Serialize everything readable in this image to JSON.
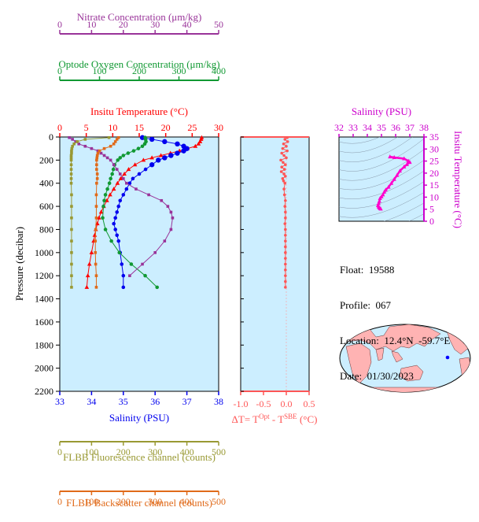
{
  "float_info": {
    "float": "Float:  19588",
    "profile": "Profile:  067",
    "location": "Location:  12.4°N  -59.7°E",
    "date": "Date:  01/30/2023"
  },
  "chart_data": [
    {
      "type": "line",
      "panel": "main-profile",
      "ylabel": "Pressure (decibar)",
      "ylim": [
        2200,
        0
      ],
      "yticks": [
        0,
        200,
        400,
        600,
        800,
        1000,
        1200,
        1400,
        1600,
        1800,
        2000,
        2200
      ],
      "axes": {
        "nitrate": {
          "label": "Nitrate Concentration (μm/kg)",
          "range": [
            0,
            50
          ],
          "ticks": [
            0,
            10,
            20,
            30,
            40,
            50
          ],
          "color": "#993399"
        },
        "oxygen": {
          "label": "Optode Oxygen Concentration (μm/kg)",
          "range": [
            0,
            400
          ],
          "ticks": [
            0,
            100,
            200,
            300,
            400
          ],
          "color": "#119933"
        },
        "temperature": {
          "label": "Insitu Temperature (°C)",
          "range": [
            0,
            30
          ],
          "ticks": [
            0,
            5,
            10,
            15,
            20,
            25,
            30
          ],
          "color": "#ff0000"
        },
        "salinity": {
          "label": "Salinity (PSU)",
          "range": [
            33,
            38
          ],
          "ticks": [
            33,
            34,
            35,
            36,
            37,
            38
          ],
          "color": "#0000ee"
        },
        "fluorescence": {
          "label": "FLBB Fluorescence channel (counts)",
          "range": [
            0,
            500
          ],
          "ticks": [
            0,
            100,
            200,
            300,
            400,
            500
          ],
          "color": "#999933"
        },
        "backscatter": {
          "label": "FLBB Backscatter channel (counts)",
          "range": [
            0,
            500
          ],
          "ticks": [
            0,
            100,
            200,
            300,
            400,
            500
          ],
          "color": "#e06a1a"
        }
      },
      "series": [
        {
          "axis": "temperature",
          "pressure": [
            5,
            20,
            40,
            60,
            80,
            100,
            120,
            140,
            160,
            180,
            200,
            240,
            280,
            320,
            360,
            400,
            450,
            500,
            550,
            600,
            650,
            700,
            750,
            800,
            850,
            900,
            1000,
            1100,
            1200,
            1300
          ],
          "values": [
            26.8,
            26.7,
            26.5,
            26.2,
            25.6,
            24.1,
            22.6,
            20.9,
            19.1,
            17.4,
            15.8,
            14.2,
            13.0,
            12.2,
            11.5,
            10.9,
            10.2,
            9.5,
            8.9,
            8.3,
            7.8,
            7.4,
            7.1,
            6.8,
            6.6,
            6.4,
            6.0,
            5.6,
            5.3,
            5.1
          ]
        },
        {
          "axis": "salinity",
          "pressure": [
            5,
            20,
            40,
            60,
            80,
            100,
            120,
            140,
            160,
            180,
            200,
            240,
            280,
            320,
            360,
            400,
            450,
            500,
            550,
            600,
            650,
            700,
            750,
            800,
            850,
            900,
            1000,
            1100,
            1200,
            1300
          ],
          "values": [
            35.6,
            35.9,
            36.3,
            36.7,
            36.9,
            37.0,
            36.9,
            36.7,
            36.5,
            36.3,
            36.1,
            35.9,
            35.7,
            35.5,
            35.3,
            35.2,
            35.1,
            35.0,
            34.9,
            34.85,
            34.8,
            34.75,
            34.7,
            34.75,
            34.8,
            34.85,
            34.9,
            34.95,
            35.0,
            35.0
          ]
        },
        {
          "axis": "oxygen",
          "pressure": [
            5,
            20,
            40,
            60,
            80,
            100,
            120,
            140,
            160,
            180,
            200,
            240,
            280,
            320,
            360,
            400,
            450,
            500,
            550,
            600,
            700,
            800,
            900,
            1000,
            1100,
            1200,
            1300
          ],
          "values": [
            215,
            216,
            217,
            214,
            208,
            198,
            186,
            172,
            160,
            152,
            146,
            138,
            135,
            132,
            128,
            125,
            120,
            115,
            112,
            110,
            108,
            115,
            130,
            150,
            180,
            215,
            245
          ]
        },
        {
          "axis": "nitrate",
          "pressure": [
            5,
            20,
            40,
            60,
            80,
            100,
            120,
            140,
            160,
            180,
            200,
            240,
            280,
            320,
            360,
            400,
            450,
            500,
            550,
            600,
            650,
            700,
            800,
            900,
            1000,
            1100,
            1200
          ],
          "values": [
            3,
            4,
            5,
            6,
            8,
            10,
            12,
            13,
            14,
            15,
            16,
            17,
            18,
            19,
            20,
            21,
            24,
            28,
            32,
            34,
            35,
            35.5,
            35,
            33,
            30,
            26,
            22
          ]
        },
        {
          "axis": "fluorescence",
          "pressure": [
            5,
            20,
            40,
            60,
            80,
            100,
            120,
            140,
            160,
            180,
            200,
            240,
            280,
            320,
            360,
            400,
            500,
            600,
            700,
            800,
            900,
            1000,
            1100,
            1200,
            1300
          ],
          "values": [
            155,
            80,
            55,
            45,
            40,
            38,
            37,
            37,
            36,
            36,
            36,
            36,
            36,
            36,
            36,
            36,
            37,
            37,
            37,
            37,
            37,
            37,
            37,
            37,
            37
          ]
        },
        {
          "axis": "backscatter",
          "pressure": [
            5,
            20,
            40,
            60,
            80,
            100,
            120,
            140,
            160,
            180,
            200,
            240,
            280,
            320,
            360,
            400,
            500,
            600,
            700,
            800,
            900,
            1000,
            1100,
            1200,
            1300
          ],
          "values": [
            185,
            180,
            175,
            170,
            160,
            140,
            125,
            120,
            118,
            117,
            116,
            116,
            116,
            118,
            118,
            116,
            115,
            115,
            115,
            113,
            112,
            112,
            113,
            115,
            115
          ]
        }
      ]
    },
    {
      "type": "line",
      "panel": "delta-t",
      "xlabel": "ΔT= T<sup>Opt</sup> - T<sup>SBE</sup> (°C)",
      "xlabel_parts": {
        "a": "ΔT= T",
        "b": "Opt",
        "c": " - T",
        "d": "SBE",
        "e": " (°C)"
      },
      "xlim": [
        -1.0,
        0.5
      ],
      "xticks": [
        "-1.0",
        "-0.5",
        "0.0",
        "0.5"
      ],
      "ylim": [
        2200,
        0
      ],
      "color": "#ff5555",
      "pressure": [
        5,
        20,
        40,
        60,
        80,
        100,
        120,
        140,
        160,
        180,
        200,
        220,
        240,
        260,
        280,
        300,
        320,
        340,
        360,
        380,
        400,
        450,
        500,
        550,
        600,
        650,
        700,
        750,
        800,
        850,
        900,
        950,
        1000,
        1050,
        1100,
        1150,
        1200,
        1250,
        1300
      ],
      "values": [
        0.02,
        -0.03,
        0.03,
        -0.06,
        0.0,
        -0.08,
        0.02,
        -0.1,
        -0.05,
        0.0,
        -0.12,
        -0.07,
        -0.02,
        -0.1,
        -0.04,
        -0.11,
        -0.05,
        -0.02,
        -0.08,
        -0.06,
        -0.03,
        -0.05,
        -0.04,
        -0.02,
        -0.03,
        -0.02,
        -0.02,
        -0.03,
        -0.02,
        -0.02,
        -0.02,
        -0.02,
        -0.02,
        -0.02,
        -0.02,
        -0.02,
        -0.02,
        -0.02,
        -0.02
      ]
    },
    {
      "type": "scatter",
      "panel": "ts-diagram",
      "title": "Salinity (PSU)",
      "ylabel": "Insitu Temperature (°C)",
      "xlim": [
        32,
        38
      ],
      "ylim": [
        0,
        35
      ],
      "xticks": [
        32,
        33,
        34,
        35,
        36,
        37,
        38
      ],
      "yticks": [
        0,
        5,
        10,
        15,
        20,
        25,
        30,
        35
      ],
      "color": "#ff00cc",
      "points": [
        [
          35.6,
          26.8
        ],
        [
          35.9,
          26.5
        ],
        [
          36.6,
          26.0
        ],
        [
          36.9,
          25.0
        ],
        [
          37.0,
          24.5
        ],
        [
          36.8,
          23.6
        ],
        [
          36.6,
          22.6
        ],
        [
          36.3,
          20.9
        ],
        [
          36.1,
          19.1
        ],
        [
          35.9,
          17.4
        ],
        [
          35.7,
          15.8
        ],
        [
          35.5,
          14.2
        ],
        [
          35.3,
          13.0
        ],
        [
          35.2,
          12.2
        ],
        [
          35.1,
          11.0
        ],
        [
          35.0,
          10.2
        ],
        [
          34.9,
          9.5
        ],
        [
          34.85,
          8.3
        ],
        [
          34.8,
          7.4
        ],
        [
          34.75,
          6.6
        ],
        [
          34.8,
          6.0
        ],
        [
          34.85,
          5.6
        ],
        [
          34.9,
          5.3
        ],
        [
          34.95,
          5.1
        ]
      ]
    }
  ]
}
